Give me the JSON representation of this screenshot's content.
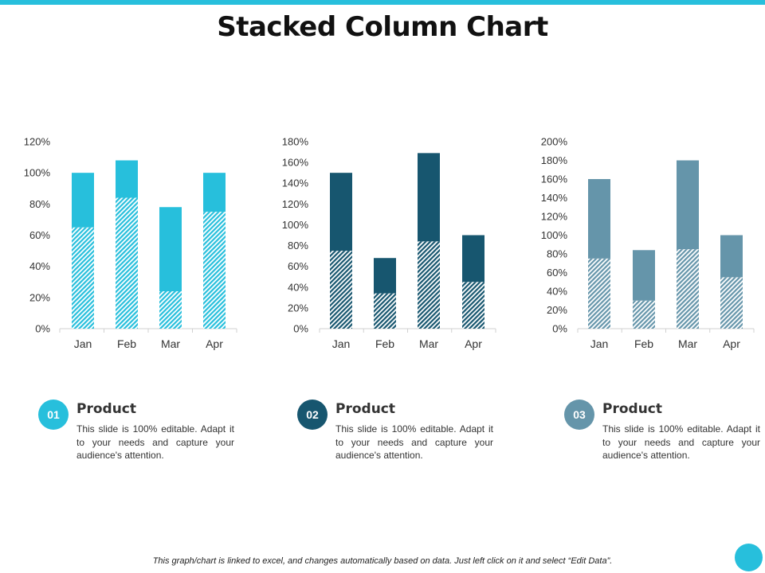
{
  "page": {
    "title": "Stacked Column Chart",
    "footnote": "This graph/chart is linked to excel, and changes automatically based on data. Just left click on it and select “Edit Data”.",
    "accent_color": "#27bfdc"
  },
  "products": [
    {
      "badge": "01",
      "title": "Product",
      "description": "This slide is 100% editable. Adapt it to your needs and capture your audience's attention.",
      "color": "#27bfdc"
    },
    {
      "badge": "02",
      "title": "Product",
      "description": "This slide is 100% editable. Adapt it to your needs and capture your audience's attention.",
      "color": "#17566f"
    },
    {
      "badge": "03",
      "title": "Product",
      "description": "This slide is 100% editable. Adapt it to your needs and capture your audience's attention.",
      "color": "#6595aa"
    }
  ],
  "chart_data": [
    {
      "type": "bar",
      "stacked": true,
      "categories": [
        "Jan",
        "Feb",
        "Mar",
        "Apr"
      ],
      "series": [
        {
          "values": [
            65,
            84,
            24,
            75
          ],
          "color": "#27bfdc",
          "pattern": "hatched"
        },
        {
          "values": [
            35,
            24,
            54,
            25
          ],
          "color": "#27bfdc",
          "pattern": "solid"
        }
      ],
      "ylim": [
        0,
        120
      ],
      "yticks": [
        "0%",
        "20%",
        "40%",
        "60%",
        "80%",
        "100%",
        "120%"
      ],
      "grid": false
    },
    {
      "type": "bar",
      "stacked": true,
      "categories": [
        "Jan",
        "Feb",
        "Mar",
        "Apr"
      ],
      "series": [
        {
          "values": [
            75,
            34,
            84,
            45
          ],
          "color": "#17566f",
          "pattern": "hatched"
        },
        {
          "values": [
            75,
            34,
            85,
            45
          ],
          "color": "#17566f",
          "pattern": "solid"
        }
      ],
      "ylim": [
        0,
        180
      ],
      "yticks": [
        "0%",
        "20%",
        "40%",
        "60%",
        "80%",
        "100%",
        "120%",
        "140%",
        "160%",
        "180%"
      ],
      "grid": false
    },
    {
      "type": "bar",
      "stacked": true,
      "categories": [
        "Jan",
        "Feb",
        "Mar",
        "Apr"
      ],
      "series": [
        {
          "values": [
            75,
            30,
            85,
            55
          ],
          "color": "#6595aa",
          "pattern": "hatched"
        },
        {
          "values": [
            85,
            54,
            95,
            45
          ],
          "color": "#6595aa",
          "pattern": "solid"
        }
      ],
      "ylim": [
        0,
        200
      ],
      "yticks": [
        "0%",
        "20%",
        "40%",
        "60%",
        "80%",
        "100%",
        "120%",
        "140%",
        "160%",
        "180%",
        "200%"
      ],
      "grid": false
    }
  ]
}
